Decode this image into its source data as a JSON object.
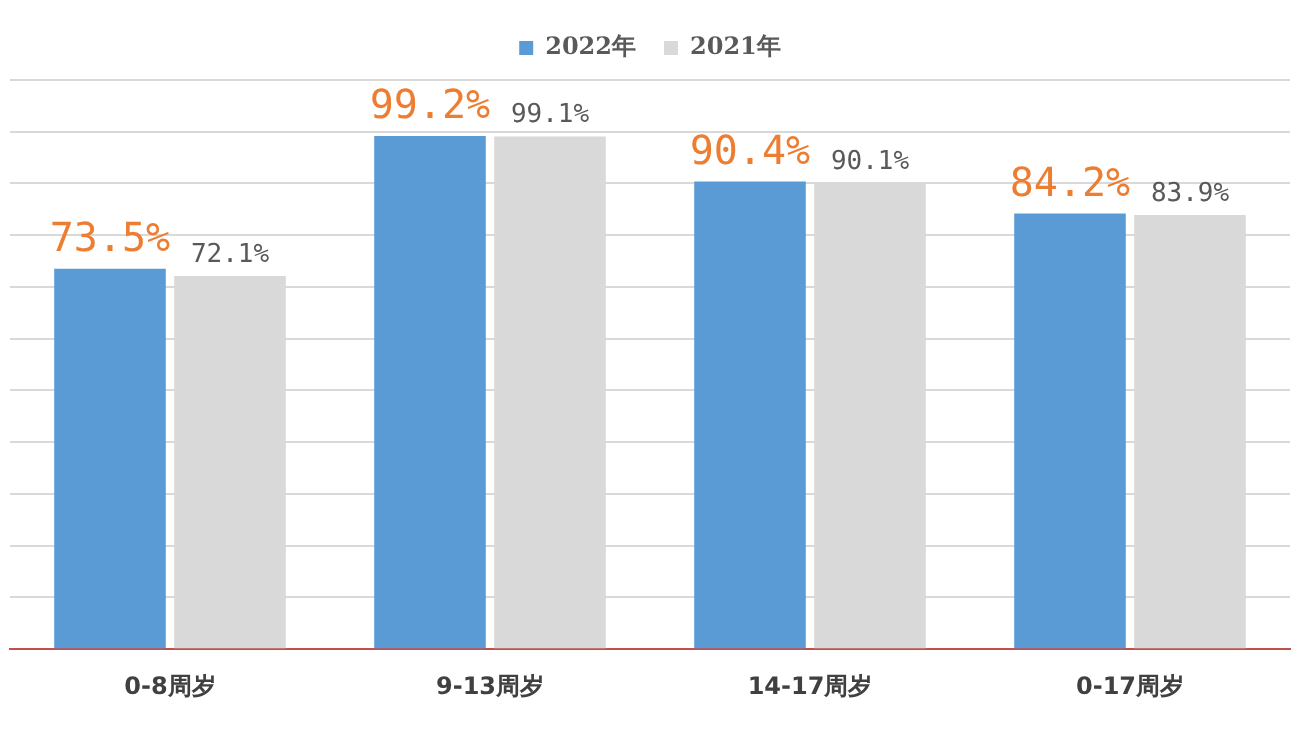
{
  "chart_data": {
    "type": "bar",
    "categories": [
      "0-8周岁",
      "9-13周岁",
      "14-17周岁",
      "0-17周岁"
    ],
    "series": [
      {
        "name": "2022年",
        "color": "#5b9bd5",
        "values": [
          73.5,
          99.2,
          90.4,
          84.2
        ],
        "value_labels": [
          "73.5%",
          "99.2%",
          "90.4%",
          "84.2%"
        ]
      },
      {
        "name": "2021年",
        "color": "#d9d9d9",
        "values": [
          72.1,
          99.1,
          90.1,
          83.9
        ],
        "value_labels": [
          "72.1%",
          "99.1%",
          "90.1%",
          "83.9%"
        ]
      }
    ],
    "ylim": [
      0,
      110
    ],
    "yticks": [
      {
        "value": 0,
        "label": null
      },
      {
        "value": 10,
        "label": null
      },
      {
        "value": 20,
        "label": null
      },
      {
        "value": 30,
        "label": null
      },
      {
        "value": 40,
        "label": null
      },
      {
        "value": 50,
        "label": null
      },
      {
        "value": 60,
        "label": null
      },
      {
        "value": 70,
        "label": null
      },
      {
        "value": 80,
        "label": null
      },
      {
        "value": 90,
        "label": null
      },
      {
        "value": 100,
        "label": null
      },
      {
        "value": 110,
        "label": null
      }
    ],
    "grid": "y",
    "legend": "top",
    "tick_labels": "x"
  }
}
